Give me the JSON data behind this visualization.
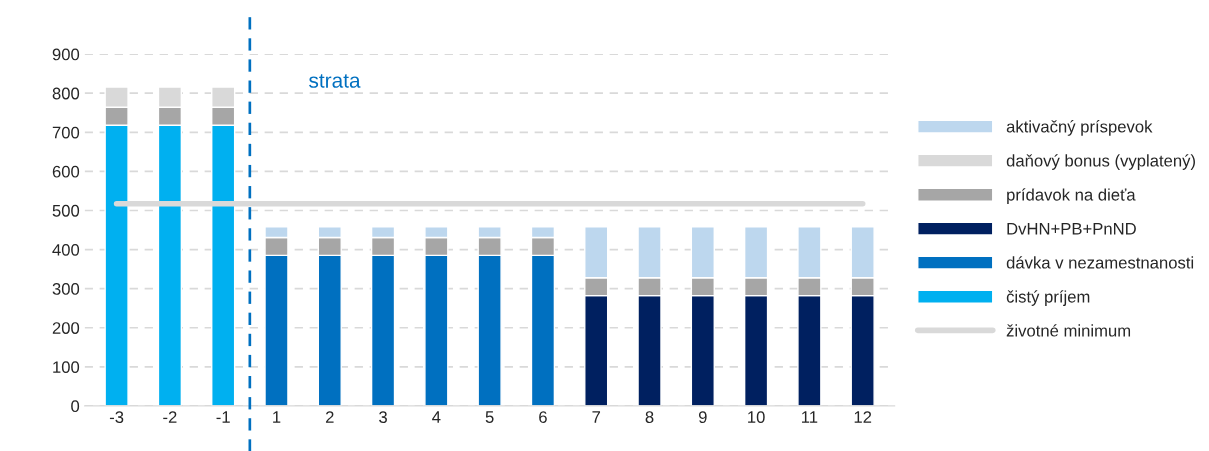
{
  "chart_data": {
    "type": "bar",
    "stacked": true,
    "categories": [
      "-3",
      "-2",
      "-1",
      "1",
      "2",
      "3",
      "4",
      "5",
      "6",
      "7",
      "8",
      "9",
      "10",
      "11",
      "12"
    ],
    "series": [
      {
        "name": "čistý príjem",
        "color": "#00b0f0",
        "values": [
          718,
          718,
          718,
          null,
          null,
          null,
          null,
          null,
          null,
          null,
          null,
          null,
          null,
          null,
          null
        ]
      },
      {
        "name": "dávka v nezamestnanosti",
        "color": "#0070c0",
        "values": [
          null,
          null,
          null,
          385,
          385,
          385,
          385,
          385,
          385,
          null,
          null,
          null,
          null,
          null,
          null
        ]
      },
      {
        "name": "DvHN+PB+PnND",
        "color": "#002060",
        "values": [
          null,
          null,
          null,
          null,
          null,
          null,
          null,
          null,
          null,
          282,
          282,
          282,
          282,
          282,
          282
        ]
      },
      {
        "name": "prídavok na dieťa",
        "color": "#a6a6a6",
        "values": [
          46,
          46,
          46,
          46,
          46,
          46,
          46,
          46,
          46,
          46,
          46,
          46,
          46,
          46,
          46
        ]
      },
      {
        "name": "daňový bonus (vyplatený)",
        "color": "#d9d9d9",
        "values": [
          52,
          52,
          52,
          null,
          null,
          null,
          null,
          null,
          null,
          null,
          null,
          null,
          null,
          null,
          null
        ]
      },
      {
        "name": "aktivačný príspevok",
        "color": "#bdd7ee",
        "values": [
          null,
          null,
          null,
          27,
          27,
          27,
          27,
          27,
          27,
          130,
          130,
          130,
          130,
          130,
          130
        ]
      },
      {
        "name": "životné minimum",
        "type": "line",
        "color": "#d9d9d9",
        "values": [
          517,
          517,
          517,
          517,
          517,
          517,
          517,
          517,
          517,
          517,
          517,
          517,
          517,
          517,
          517
        ]
      }
    ],
    "ylim": [
      0,
      900
    ],
    "yticks": [
      0,
      100,
      200,
      300,
      400,
      500,
      600,
      700,
      800,
      900
    ],
    "grid": "y",
    "legend": "right",
    "annotations": [
      "strata"
    ]
  }
}
